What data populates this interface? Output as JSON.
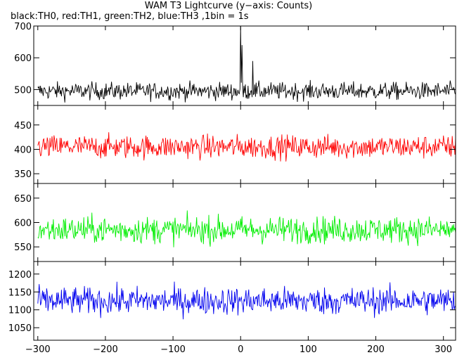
{
  "title": "WAM T3 Lightcurve (y−axis: Counts)",
  "subtitle": "black:TH0, red:TH1, green:TH2, blue:TH3 ,1bin = 1s",
  "chart_data": [
    {
      "type": "line",
      "series": [
        {
          "name": "TH0",
          "color": "#000000"
        }
      ],
      "xlim": [
        -306,
        318
      ],
      "ylim": [
        450,
        700
      ],
      "yticks": [
        500,
        600,
        700
      ],
      "baseline": 495,
      "noise": 25,
      "peaks": [
        [
          0,
          700
        ],
        [
          2,
          640
        ],
        [
          18,
          590
        ]
      ]
    },
    {
      "type": "line",
      "series": [
        {
          "name": "TH1",
          "color": "#ff0000"
        }
      ],
      "xlim": [
        -306,
        318
      ],
      "ylim": [
        330,
        490
      ],
      "yticks": [
        350,
        400,
        450
      ],
      "baseline": 405,
      "noise": 22,
      "peaks": []
    },
    {
      "type": "line",
      "series": [
        {
          "name": "TH2",
          "color": "#00ee00"
        }
      ],
      "xlim": [
        -306,
        318
      ],
      "ylim": [
        520,
        680
      ],
      "yticks": [
        550,
        600,
        650
      ],
      "baseline": 585,
      "noise": 25,
      "peaks": []
    },
    {
      "type": "line",
      "series": [
        {
          "name": "TH3",
          "color": "#0000ee"
        }
      ],
      "xlim": [
        -306,
        318
      ],
      "ylim": [
        1015,
        1235
      ],
      "yticks": [
        1050,
        1100,
        1150,
        1200
      ],
      "baseline": 1125,
      "noise": 35,
      "peaks": []
    }
  ],
  "xticks": [
    -300,
    -200,
    -100,
    0,
    100,
    200,
    300
  ]
}
